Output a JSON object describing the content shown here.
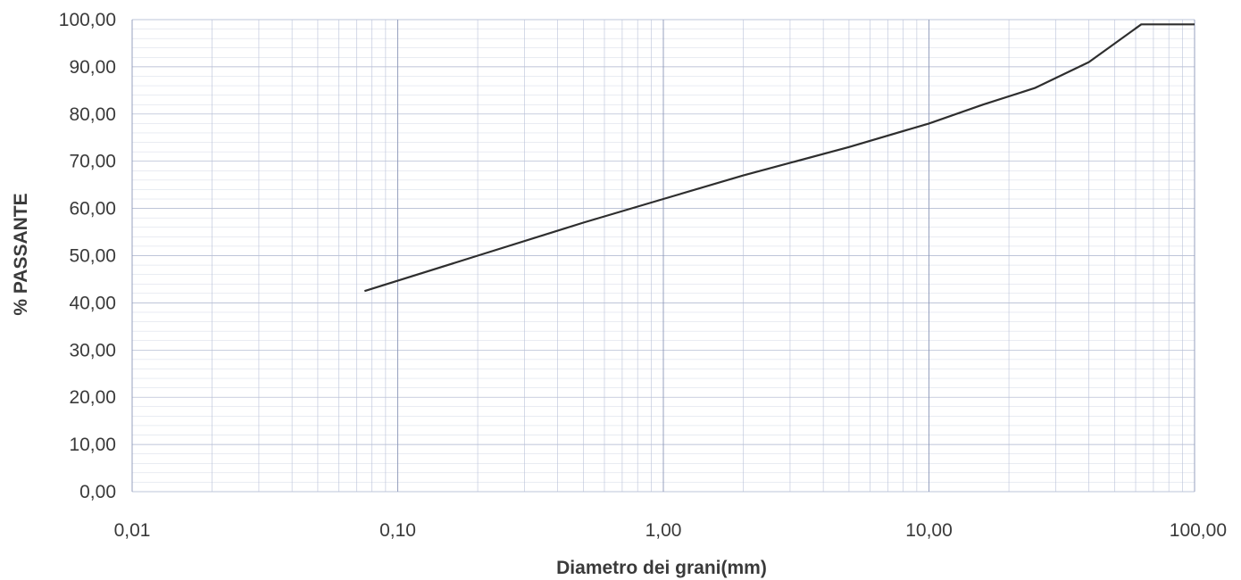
{
  "chart_data": {
    "type": "line",
    "xlabel": "Diametro dei grani(mm)",
    "ylabel": "% PASSANTE",
    "x_scale": "log",
    "xlim": [
      0.01,
      100
    ],
    "ylim": [
      0,
      100
    ],
    "x_ticks": [
      "0,01",
      "0,10",
      "1,00",
      "10,00",
      "100,00"
    ],
    "y_ticks": [
      "0,00",
      "10,00",
      "20,00",
      "30,00",
      "40,00",
      "50,00",
      "60,00",
      "70,00",
      "80,00",
      "90,00",
      "100,00"
    ],
    "grid": true,
    "legend": "none",
    "series": [
      {
        "color": "#2e2e2e",
        "x": [
          0.075,
          0.2,
          0.5,
          1.0,
          2.0,
          5.0,
          10.0,
          16.0,
          25.0,
          40.0,
          63.0,
          100.0
        ],
        "y": [
          42.5,
          50,
          57,
          62,
          67,
          73,
          78,
          82,
          85.5,
          91,
          99,
          99
        ]
      }
    ]
  }
}
